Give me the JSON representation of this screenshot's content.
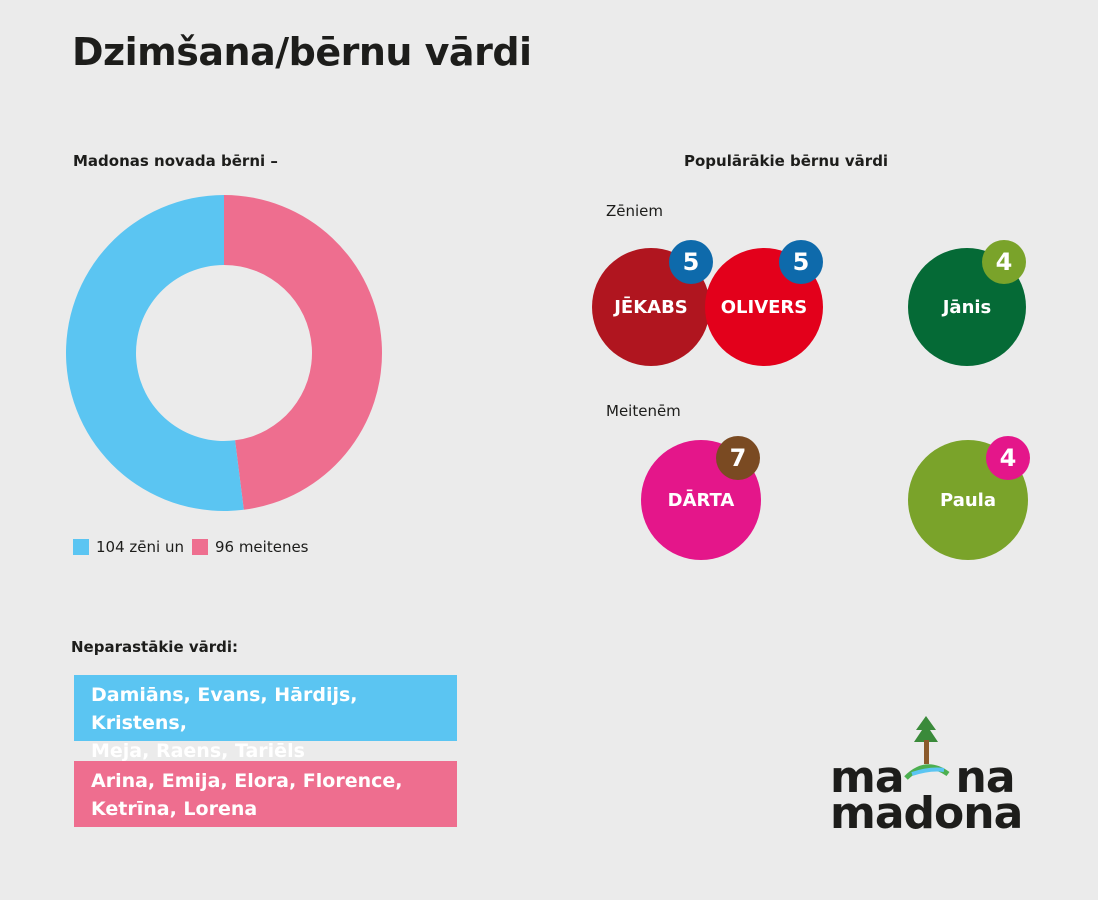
{
  "title": "Dzimšana/bērnu vārdi",
  "donut": {
    "caption": "Madonas novada bērni –",
    "legend": [
      {
        "label": "104 zēni un",
        "color": "#5bc5f2"
      },
      {
        "label": "96 meitenes",
        "color": "#ee6e8f"
      }
    ]
  },
  "chart_data": {
    "type": "pie",
    "subtype": "donut",
    "title": "Madonas novada bērni –",
    "categories": [
      "zēni",
      "meitenes"
    ],
    "values": [
      104,
      96
    ],
    "colors": [
      "#5bc5f2",
      "#ee6e8f"
    ]
  },
  "popular": {
    "title": "Populārākie bērnu vārdi",
    "boys_label": "Zēniem",
    "girls_label": "Meitenēm",
    "boys": [
      {
        "name": "JĒKABS",
        "count": "5",
        "color": "#b0151f",
        "badge_color": "#0e6aab"
      },
      {
        "name": "OLIVERS",
        "count": "5",
        "color": "#e3001b",
        "badge_color": "#0e6aab"
      },
      {
        "name": "Jānis",
        "count": "4",
        "color": "#056a36",
        "badge_color": "#7aa32a"
      }
    ],
    "girls": [
      {
        "name": "DĀRTA",
        "count": "7",
        "color": "#e4168a",
        "badge_color": "#7a4a22"
      },
      {
        "name": "Paula",
        "count": "4",
        "color": "#7aa32a",
        "badge_color": "#e4168a"
      }
    ]
  },
  "unusual": {
    "title": "Neparastākie vārdi:",
    "boys_line1": "Damiāns, Evans, Hārdijs, Kristens,",
    "boys_line2": "Meja, Raens, Tariēls",
    "girls_line1": "Arina, Emija, Elora, Florence,",
    "girls_line2": "Ketrīna, Lorena",
    "boys_color": "#5bc5f2",
    "girls_color": "#ee6e8f"
  },
  "logo": {
    "line1_a": "ma",
    "line1_b": "na",
    "line2": "madona"
  }
}
